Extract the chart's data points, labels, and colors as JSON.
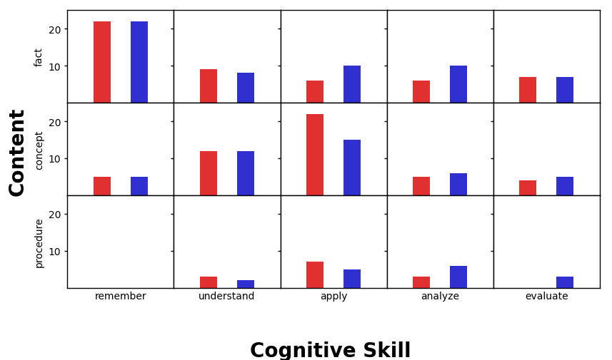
{
  "cognitive_skills": [
    "remember",
    "understand",
    "apply",
    "analyze",
    "evaluate"
  ],
  "content_types": [
    "fact",
    "concept",
    "procedure"
  ],
  "values_red": {
    "fact": [
      22,
      9,
      6,
      6,
      7
    ],
    "concept": [
      5,
      12,
      22,
      5,
      4
    ],
    "procedure": [
      0,
      3,
      7,
      3,
      0
    ]
  },
  "values_blue": {
    "fact": [
      22,
      8,
      10,
      10,
      7
    ],
    "concept": [
      5,
      12,
      15,
      6,
      5
    ],
    "procedure": [
      0,
      2,
      5,
      6,
      3
    ]
  },
  "bar_colors": [
    "#e03030",
    "#3030d0"
  ],
  "background_color": "#ffffff",
  "xlabel": "Cognitive Skill",
  "ylabel": "Content",
  "xlabel_fontsize": 20,
  "ylabel_fontsize": 20,
  "tick_label_fontsize": 10,
  "row_label_fontsize": 10,
  "col_label_fontsize": 10,
  "bar_width": 0.32,
  "ylim": [
    0,
    25
  ],
  "yticks": [
    10,
    20
  ],
  "x_red": 0.65,
  "x_blue": 1.35,
  "xlim": [
    0,
    2
  ]
}
